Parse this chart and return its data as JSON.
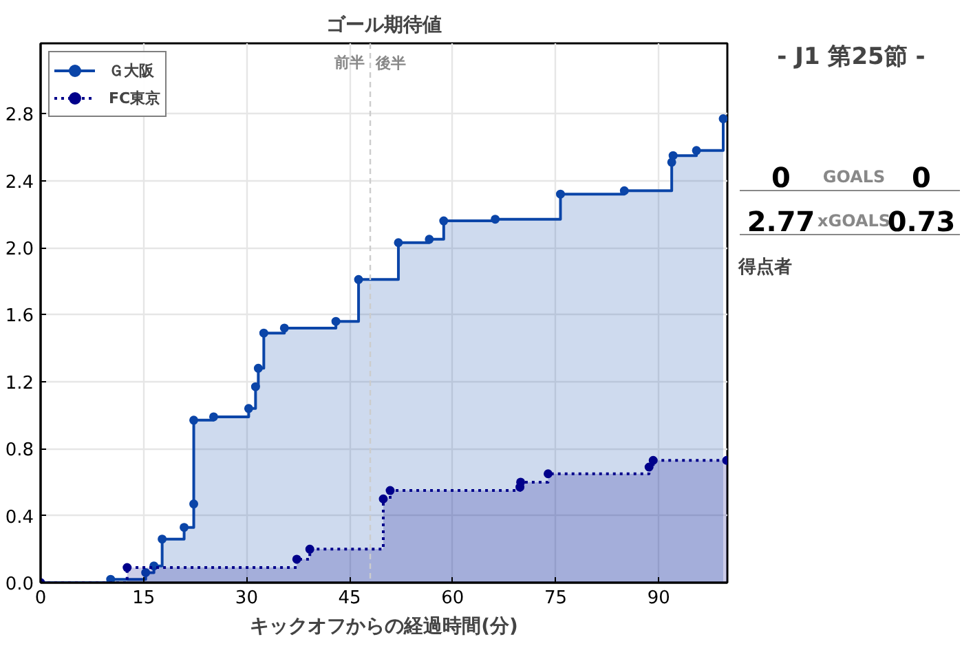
{
  "chart_data": [
    {
      "type": "step",
      "title": "ゴール期待値",
      "xlabel": "キックオフからの経過時間(分)",
      "xlim": [
        0,
        100
      ],
      "xticks": [
        0,
        15,
        30,
        45,
        60,
        75,
        90
      ],
      "ylim": [
        0,
        3.22
      ],
      "yticks": [
        {
          "value": 0,
          "label": "0.0"
        },
        0.4,
        0.8,
        1.2,
        1.6,
        {
          "value": 2,
          "label": "2.0"
        },
        2.4,
        2.8
      ],
      "grid": true,
      "legend": "top left",
      "marker": "circle",
      "series": [
        {
          "name": "Ｇ大阪",
          "color": "#0b45a8",
          "line_style": "solid",
          "x": [
            0,
            10.2,
            15.3,
            16.5,
            17.7,
            20.9,
            22.3,
            22.3,
            25.2,
            30.3,
            31.3,
            31.7,
            32.5,
            35.5,
            43.0,
            46.3,
            52.1,
            56.6,
            58.7,
            66.2,
            75.7,
            85.0,
            91.9,
            92.1,
            95.5,
            99.4
          ],
          "values": [
            0,
            0.02,
            0.06,
            0.1,
            0.26,
            0.33,
            0.47,
            0.97,
            0.99,
            1.04,
            1.17,
            1.28,
            1.49,
            1.52,
            1.56,
            1.81,
            2.03,
            2.05,
            2.16,
            2.17,
            2.32,
            2.34,
            2.51,
            2.55,
            2.58,
            2.77
          ]
        },
        {
          "name": "FC東京",
          "color": "#00008b",
          "line_style": "dotted",
          "x": [
            0,
            12.6,
            37.3,
            39.2,
            49.9,
            50.9,
            69.8,
            69.9,
            73.9,
            88.6,
            89.2,
            99.9
          ],
          "values": [
            0,
            0.09,
            0.14,
            0.2,
            0.5,
            0.55,
            0.57,
            0.6,
            0.65,
            0.69,
            0.73,
            0.73
          ]
        }
      ],
      "ref_lines": [
        {
          "axis": "x",
          "value": 48,
          "label": "前半",
          "color": "#cccccc",
          "line_style": "dashed"
        }
      ],
      "annotations": [
        {
          "text": "後半",
          "x": 48,
          "y": 3.1
        }
      ]
    },
    {
      "type": "other",
      "title": "- J1 第25節 -",
      "annotations": [
        "0",
        "GOALS",
        "0",
        "2.77",
        "xGOALS",
        "0.73",
        "得点者"
      ]
    }
  ]
}
